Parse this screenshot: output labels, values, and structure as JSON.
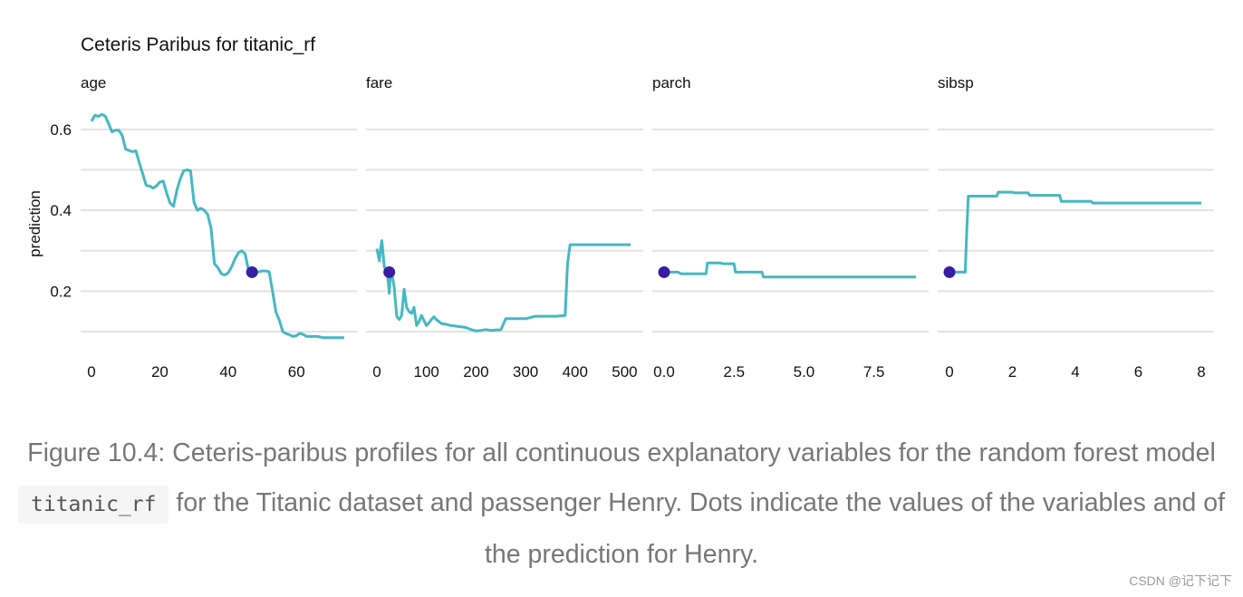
{
  "chart_data": {
    "type": "line",
    "title": "Ceteris Paribus for titanic_rf",
    "ylabel": "prediction",
    "ylim": [
      0.08,
      0.64
    ],
    "yticks": [
      0.2,
      0.4,
      0.6
    ],
    "line_color": "#45b8c2",
    "point_color": "#371ea3",
    "grid": true,
    "panels": [
      {
        "name": "age",
        "xlim": [
          0,
          74
        ],
        "xticks": [
          0,
          20,
          40,
          60
        ],
        "xticklabels": [
          "0",
          "20",
          "40",
          "60"
        ],
        "series": {
          "x": [
            0,
            1,
            2,
            3,
            4,
            5,
            6,
            7,
            8,
            9,
            10,
            11,
            12,
            13,
            14,
            15,
            16,
            17,
            18,
            19,
            20,
            21,
            22,
            23,
            24,
            25,
            26,
            27,
            28,
            29,
            30,
            31,
            32,
            33,
            34,
            35,
            36,
            37,
            38,
            39,
            40,
            41,
            42,
            43,
            44,
            45,
            46,
            47,
            48,
            49,
            50,
            51,
            52,
            53,
            54,
            55,
            56,
            57,
            58,
            59,
            60,
            61,
            62,
            63,
            64,
            66,
            68,
            70,
            74
          ],
          "y": [
            0.62,
            0.635,
            0.632,
            0.637,
            0.633,
            0.614,
            0.594,
            0.598,
            0.598,
            0.585,
            0.551,
            0.548,
            0.545,
            0.547,
            0.517,
            0.49,
            0.462,
            0.46,
            0.455,
            0.46,
            0.47,
            0.472,
            0.443,
            0.418,
            0.41,
            0.45,
            0.478,
            0.498,
            0.5,
            0.498,
            0.42,
            0.4,
            0.405,
            0.4,
            0.39,
            0.355,
            0.268,
            0.258,
            0.243,
            0.24,
            0.245,
            0.26,
            0.28,
            0.295,
            0.3,
            0.292,
            0.25,
            0.245,
            0.245,
            0.248,
            0.25,
            0.25,
            0.248,
            0.2,
            0.148,
            0.128,
            0.1,
            0.095,
            0.092,
            0.088,
            0.09,
            0.096,
            0.093,
            0.088,
            0.088,
            0.088,
            0.085,
            0.085,
            0.085
          ]
        },
        "point": {
          "x": 47,
          "y": 0.247
        }
      },
      {
        "name": "fare",
        "xlim": [
          0,
          512
        ],
        "xticks": [
          0,
          100,
          200,
          300,
          400,
          500
        ],
        "xticklabels": [
          "0",
          "100",
          "200",
          "300",
          "400",
          "500"
        ],
        "series": {
          "x": [
            0,
            5,
            8,
            10,
            15,
            20,
            22,
            25,
            27,
            30,
            35,
            40,
            45,
            50,
            55,
            60,
            65,
            70,
            75,
            80,
            85,
            90,
            100,
            105,
            110,
            115,
            120,
            130,
            140,
            150,
            170,
            180,
            190,
            200,
            210,
            220,
            230,
            240,
            250,
            260,
            280,
            300,
            320,
            340,
            360,
            380,
            385,
            390,
            400,
            450,
            512
          ],
          "y": [
            0.305,
            0.275,
            0.31,
            0.325,
            0.26,
            0.245,
            0.235,
            0.195,
            0.24,
            0.245,
            0.21,
            0.138,
            0.13,
            0.14,
            0.205,
            0.16,
            0.15,
            0.145,
            0.16,
            0.115,
            0.125,
            0.14,
            0.115,
            0.122,
            0.13,
            0.137,
            0.13,
            0.12,
            0.118,
            0.115,
            0.112,
            0.11,
            0.105,
            0.102,
            0.103,
            0.105,
            0.103,
            0.104,
            0.104,
            0.132,
            0.132,
            0.132,
            0.138,
            0.138,
            0.138,
            0.14,
            0.27,
            0.315,
            0.315,
            0.315,
            0.315
          ]
        },
        "point": {
          "x": 25,
          "y": 0.247
        }
      },
      {
        "name": "parch",
        "xlim": [
          0,
          9
        ],
        "xticks": [
          0,
          2.5,
          5,
          7.5
        ],
        "xticklabels": [
          "0.0",
          "2.5",
          "5.0",
          "7.5"
        ],
        "series": {
          "x": [
            0,
            0.5,
            0.6,
            1.5,
            1.55,
            2.0,
            2.1,
            2.5,
            2.55,
            3.5,
            3.55,
            9
          ],
          "y": [
            0.247,
            0.247,
            0.243,
            0.243,
            0.27,
            0.27,
            0.268,
            0.268,
            0.247,
            0.247,
            0.235,
            0.235
          ]
        },
        "point": {
          "x": 0,
          "y": 0.247
        }
      },
      {
        "name": "sibsp",
        "xlim": [
          0,
          8
        ],
        "xticks": [
          0,
          2,
          4,
          6,
          8
        ],
        "xticklabels": [
          "0",
          "2",
          "4",
          "6",
          "8"
        ],
        "series": {
          "x": [
            0,
            0.5,
            0.55,
            0.6,
            1.5,
            1.55,
            2.0,
            2.05,
            2.5,
            2.55,
            3.5,
            3.55,
            4.5,
            4.55,
            8
          ],
          "y": [
            0.247,
            0.247,
            0.35,
            0.435,
            0.435,
            0.445,
            0.445,
            0.443,
            0.443,
            0.437,
            0.437,
            0.422,
            0.422,
            0.418,
            0.418
          ]
        },
        "point": {
          "x": 0,
          "y": 0.247
        }
      }
    ]
  },
  "caption": {
    "before": "Figure 10.4: Ceteris-paribus profiles for all continuous explanatory variables for the random forest model",
    "code": "titanic_rf",
    "after": "for the Titanic dataset and passenger Henry. Dots indicate the values of the variables and of the prediction for Henry."
  },
  "watermark": "CSDN @记下记下"
}
